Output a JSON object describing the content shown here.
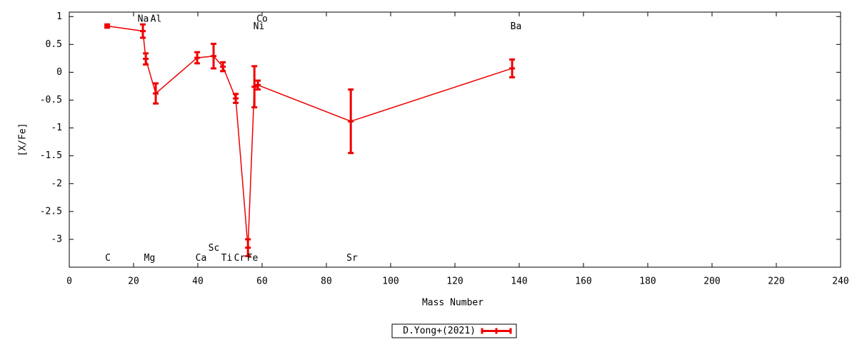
{
  "chart_data": {
    "type": "errorbar-line",
    "x_label": "Mass Number",
    "y_label": "[X/Fe]",
    "xlim": [
      0,
      240
    ],
    "ylim": [
      -3.5,
      1.08
    ],
    "xticks": [
      0,
      20,
      40,
      60,
      80,
      100,
      120,
      140,
      160,
      180,
      200,
      220,
      240
    ],
    "yticks": [
      1,
      0.5,
      0,
      -0.5,
      -1,
      -1.5,
      -2,
      -2.5,
      -3
    ],
    "legend": "bottom",
    "series": [
      {
        "name": "D.Yong+(2021)",
        "color": "#ee0000",
        "x": [
          11.8,
          22.9,
          23.8,
          26.9,
          39.8,
          44.9,
          47.8,
          51.8,
          55.6,
          57.6,
          58.7,
          87.6,
          137.8
        ],
        "values": [
          0.83,
          0.74,
          0.24,
          -0.38,
          0.26,
          0.29,
          0.1,
          -0.47,
          -3.15,
          -0.26,
          -0.23,
          -0.88,
          0.07
        ],
        "errors": [
          0.03,
          0.12,
          0.1,
          0.18,
          0.1,
          0.22,
          0.08,
          0.08,
          0.15,
          0.37,
          0.08,
          0.57,
          0.16
        ]
      }
    ],
    "annotations": [
      {
        "text": "C",
        "x": 12,
        "y": -3.34
      },
      {
        "text": "Na",
        "x": 23,
        "y": 0.95
      },
      {
        "text": "Mg",
        "x": 25,
        "y": -3.34
      },
      {
        "text": "Al",
        "x": 27,
        "y": 0.95
      },
      {
        "text": "Ca",
        "x": 41,
        "y": -3.34
      },
      {
        "text": "Sc",
        "x": 45,
        "y": -3.16
      },
      {
        "text": "Ti",
        "x": 49,
        "y": -3.34
      },
      {
        "text": "Cr",
        "x": 53,
        "y": -3.34
      },
      {
        "text": "Fe",
        "x": 57,
        "y": -3.34
      },
      {
        "text": "Co",
        "x": 60,
        "y": 0.95
      },
      {
        "text": "Ni",
        "x": 59,
        "y": 0.82
      },
      {
        "text": "Sr",
        "x": 88,
        "y": -3.34
      },
      {
        "text": "Ba",
        "x": 139,
        "y": 0.82
      }
    ]
  }
}
